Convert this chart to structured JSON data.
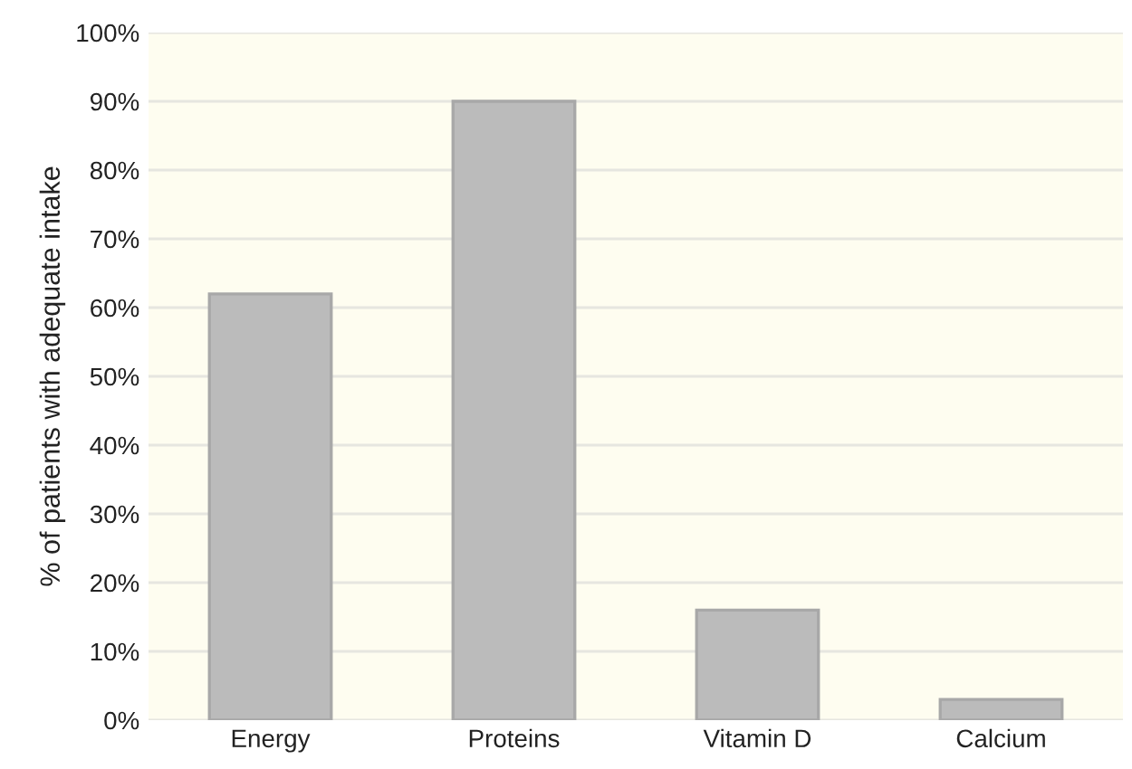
{
  "chart_data": {
    "type": "bar",
    "ylabel": "% of patients with adequate intake",
    "categories": [
      "Energy",
      "Proteins",
      "Vitamin D",
      "Calcium"
    ],
    "values": [
      62,
      90,
      16,
      3
    ],
    "color": "#bbbbbb",
    "ylim": [
      0,
      100
    ],
    "yticks": [
      {
        "value": 0,
        "label": "0%"
      },
      {
        "value": 10,
        "label": "10%"
      },
      {
        "value": 20,
        "label": "20%"
      },
      {
        "value": 30,
        "label": "30%"
      },
      {
        "value": 40,
        "label": "40%"
      },
      {
        "value": 50,
        "label": "50%"
      },
      {
        "value": 60,
        "label": "60%"
      },
      {
        "value": 70,
        "label": "70%"
      },
      {
        "value": 80,
        "label": "80%"
      },
      {
        "value": 90,
        "label": "90%"
      },
      {
        "value": 100,
        "label": "100%"
      }
    ],
    "grid": "y"
  }
}
